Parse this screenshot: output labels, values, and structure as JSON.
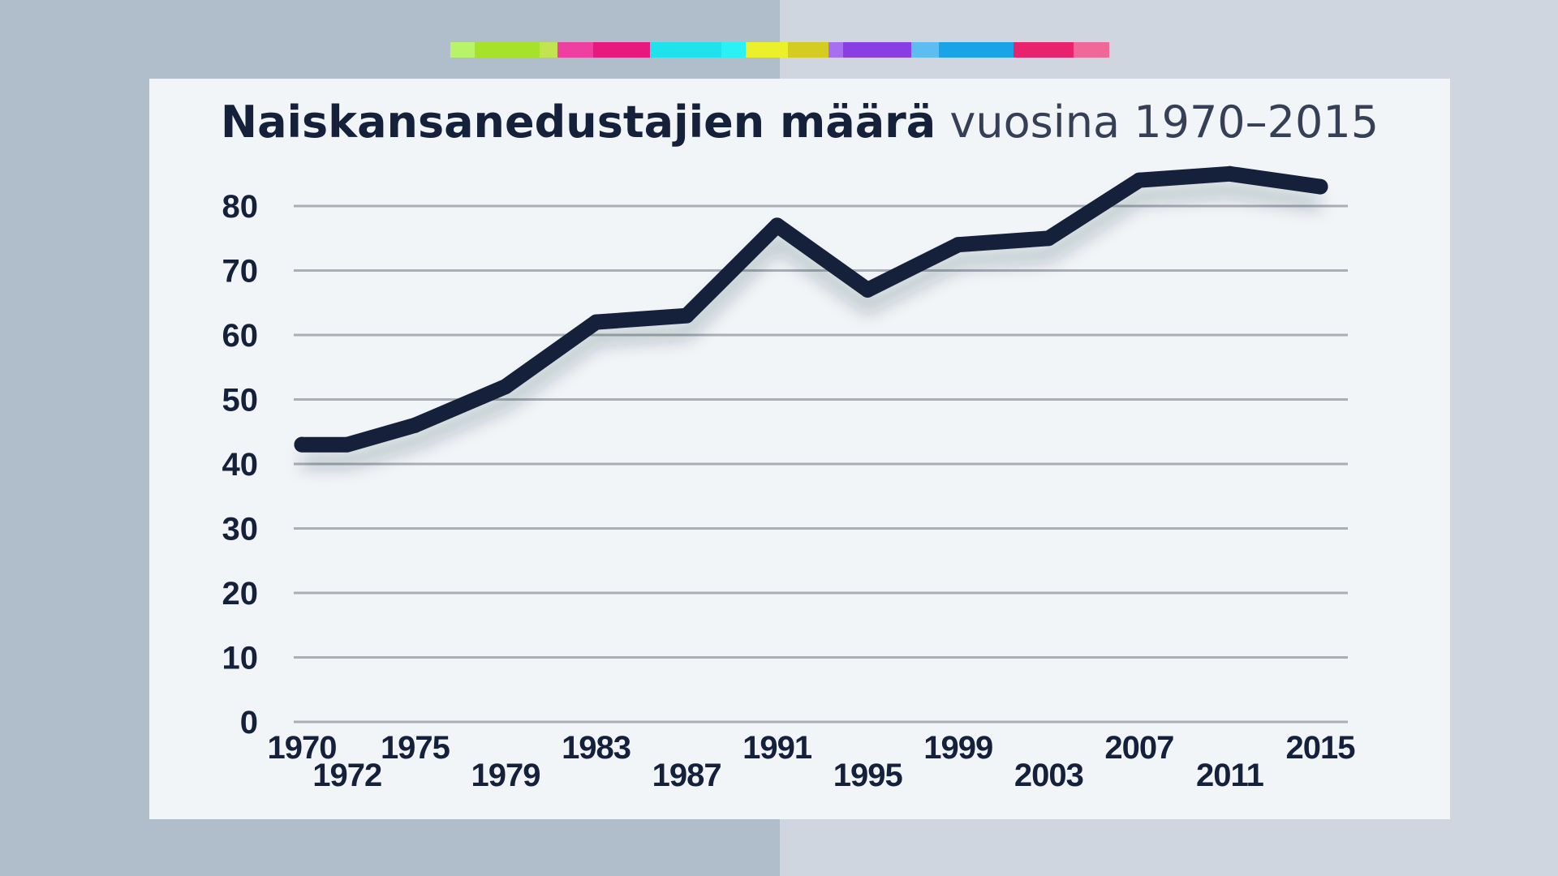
{
  "colors": {
    "background_left": "#b0bdcb",
    "background_right": "#cfd6df",
    "card": "#f2f5f8",
    "line": "#15203a",
    "grid": "#aaafb6",
    "text": "#15203a",
    "strip": [
      "#b8f36a",
      "#a6e22a",
      "#c1e550",
      "#ef3fa0",
      "#e8197e",
      "#1fe2ec",
      "#2af1f4",
      "#eaf12a",
      "#d5cc22",
      "#a86ef0",
      "#8a3de2",
      "#5dbdf0",
      "#1aa3e6",
      "#e8226c",
      "#ef6898"
    ]
  },
  "title": {
    "bold": "Naiskansanedustajien määrä",
    "light": "vuosina 1970–2015"
  },
  "chart_data": {
    "type": "line",
    "x": [
      "1970",
      "1972",
      "1975",
      "1979",
      "1983",
      "1987",
      "1991",
      "1995",
      "1999",
      "2003",
      "2007",
      "2011",
      "2015"
    ],
    "values": [
      43,
      43,
      46,
      52,
      62,
      63,
      77,
      67,
      74,
      75,
      84,
      85,
      83
    ],
    "ylim": [
      0,
      80
    ],
    "yticks": [
      0,
      10,
      20,
      30,
      40,
      50,
      60,
      70,
      80
    ],
    "grid": true,
    "xlabel": "",
    "ylabel": ""
  }
}
